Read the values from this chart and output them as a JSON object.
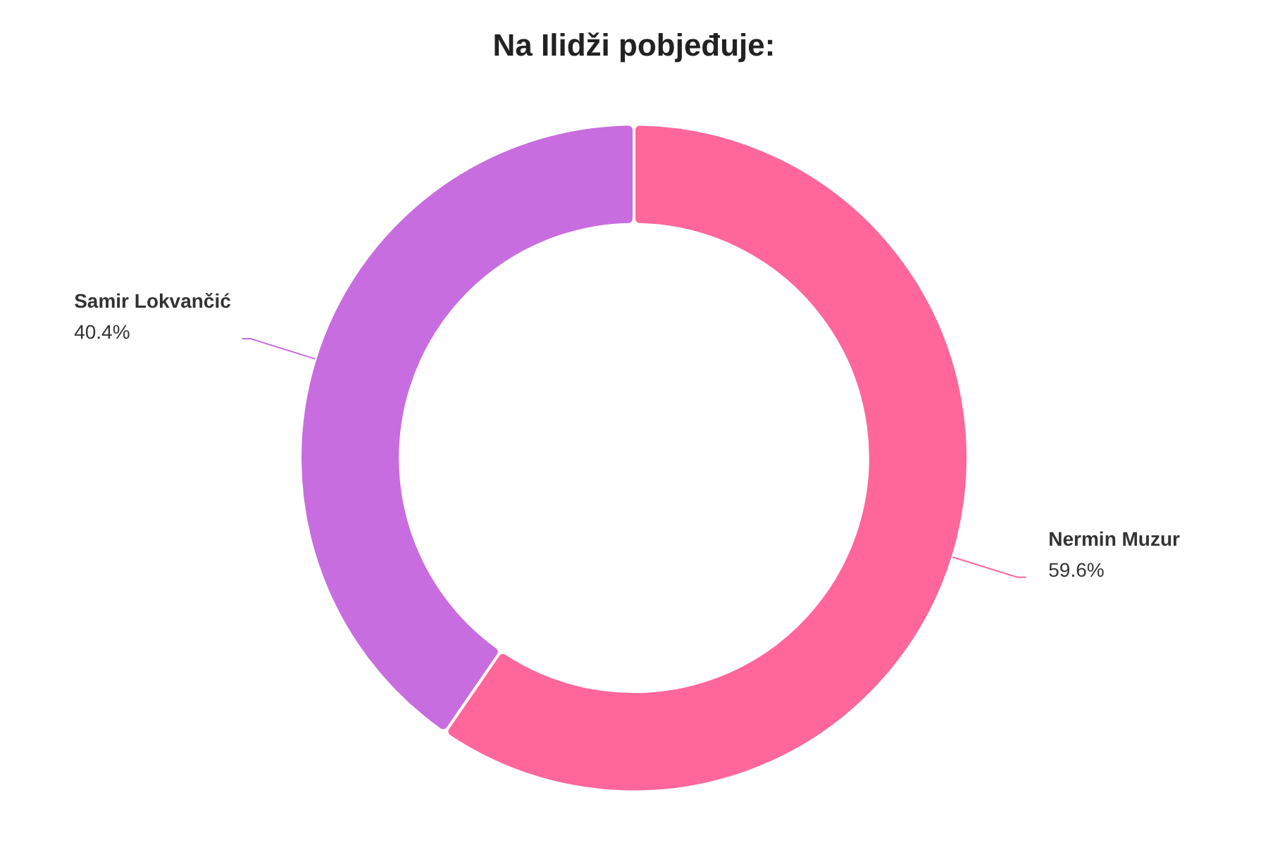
{
  "chart_data": {
    "type": "donut",
    "title": "Na Ilidži pobjeđuje:",
    "categories": [
      "Nermin Muzur",
      "Samir Lokvančić"
    ],
    "values": [
      59.6,
      40.4
    ],
    "value_labels": [
      "59.6%",
      "40.4%"
    ],
    "colors": [
      "#ff6699",
      "#c86ddf"
    ],
    "legend": false
  }
}
